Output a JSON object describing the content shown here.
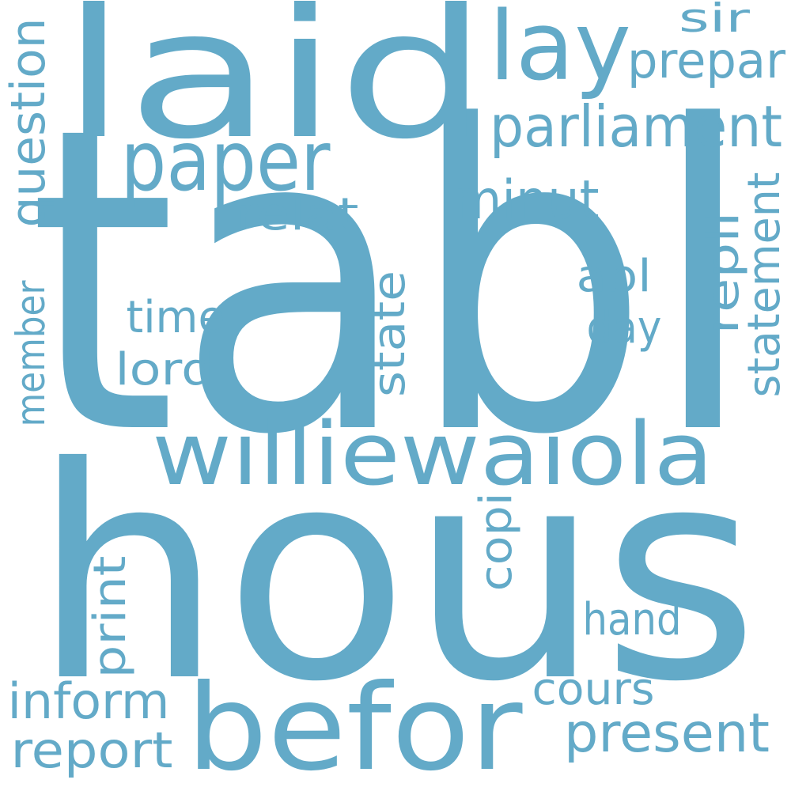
{
  "color": "#63AAC8",
  "words": [
    {
      "text": "tabl",
      "size": 530,
      "rotate": 0
    },
    {
      "text": "hous",
      "size": 370,
      "rotate": 0
    },
    {
      "text": "laid",
      "size": 225,
      "rotate": 0
    },
    {
      "text": "befor",
      "size": 150,
      "rotate": 0
    },
    {
      "text": "williewaiola",
      "size": 110,
      "rotate": 0
    },
    {
      "text": "lay",
      "size": 120,
      "rotate": 0
    },
    {
      "text": "paper",
      "size": 105,
      "rotate": 0
    },
    {
      "text": "parliament",
      "size": 72,
      "rotate": 0
    },
    {
      "text": "present",
      "size": 68,
      "rotate": 0
    },
    {
      "text": "minut",
      "size": 68,
      "rotate": 0
    },
    {
      "text": "prepar",
      "size": 62,
      "rotate": 0
    },
    {
      "text": "report",
      "size": 62,
      "rotate": 0
    },
    {
      "text": "inform",
      "size": 62,
      "rotate": 0
    },
    {
      "text": "question",
      "size": 60,
      "rotate": -90
    },
    {
      "text": "statement",
      "size": 56,
      "rotate": -90
    },
    {
      "text": "hand",
      "size": 56,
      "rotate": 0
    },
    {
      "text": "cours",
      "size": 56,
      "rotate": 0
    },
    {
      "text": "time",
      "size": 56,
      "rotate": 0
    },
    {
      "text": "lord",
      "size": 56,
      "rotate": 0
    },
    {
      "text": "relat",
      "size": 56,
      "rotate": 0
    },
    {
      "text": "day",
      "size": 56,
      "rotate": 0
    },
    {
      "text": "abl",
      "size": 56,
      "rotate": 0
    },
    {
      "text": "state",
      "size": 56,
      "rotate": -90
    },
    {
      "text": "repli",
      "size": 56,
      "rotate": -90
    },
    {
      "text": "copi",
      "size": 56,
      "rotate": -90
    },
    {
      "text": "print",
      "size": 56,
      "rotate": -90
    },
    {
      "text": "member",
      "size": 50,
      "rotate": -90
    },
    {
      "text": "sir",
      "size": 50,
      "rotate": 0
    }
  ]
}
